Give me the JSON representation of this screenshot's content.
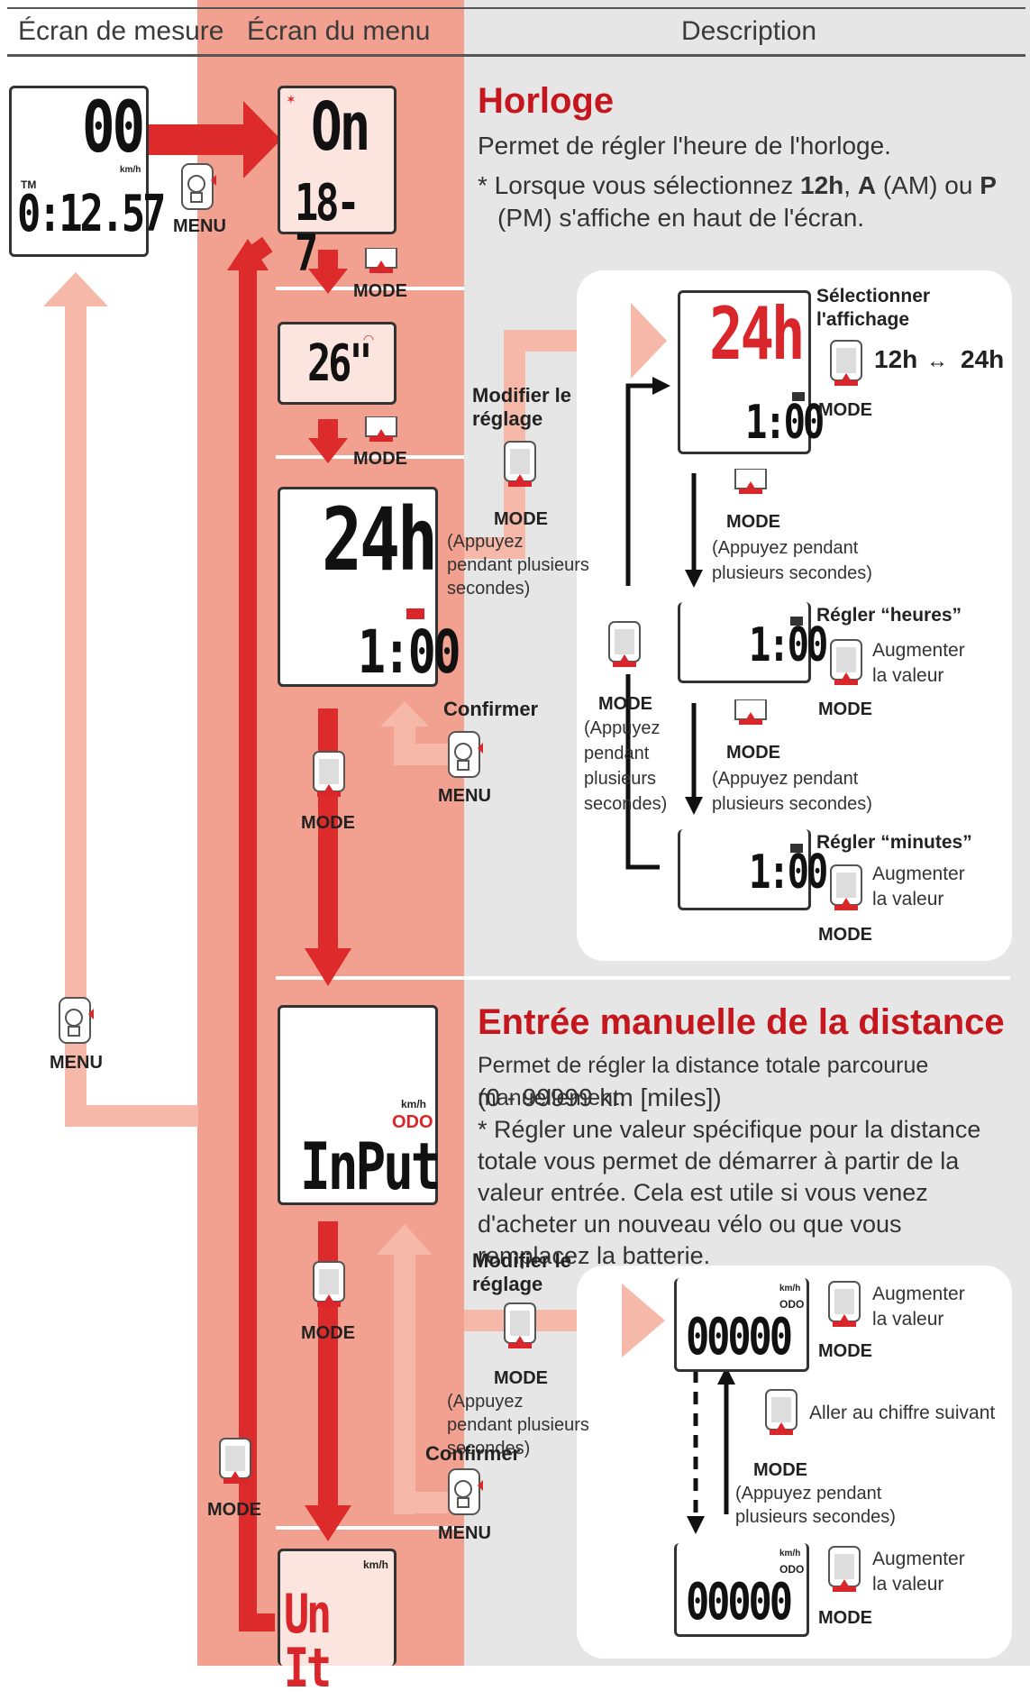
{
  "header": {
    "col1": "Écran de mesure",
    "col2": "Écran du menu",
    "col3": "Description"
  },
  "measure_screen": {
    "top": "00",
    "unit": "km/h",
    "tm": "TM",
    "bottom": "0:12.57"
  },
  "menu_labels": {
    "menu": "MENU",
    "mode": "MODE"
  },
  "menu_screens": {
    "clock": {
      "top": "On",
      "bottom": "18- 7"
    },
    "wheel": {
      "value": "26\""
    },
    "clockset": {
      "top": "24h",
      "bottom": "1:00"
    },
    "input": {
      "unit": "km/h",
      "odo": "ODO",
      "value": "InPut"
    },
    "unit": {
      "unit": "km/h",
      "value": "Un It"
    }
  },
  "horloge": {
    "title": "Horloge",
    "line1": "Permet de régler l'heure de l'horloge.",
    "note_prefix": "* Lorsque vous sélectionnez ",
    "note_12h": "12h",
    "note_mid1": ", ",
    "note_a": "A",
    "note_mid2": " (AM) ou ",
    "note_p": "P",
    "note_end": "(PM) s'affiche en haut de l'écran."
  },
  "horloge_flow": {
    "modify": "Modifier le réglage",
    "mode": "MODE",
    "hold": "(Appuyez pendant plusieurs secondes)",
    "confirm": "Confirmer",
    "menu": "MENU",
    "select_display": "Sélectionner l'affichage",
    "toggle_12": "12h",
    "toggle_arrow": "↔",
    "toggle_24": "24h",
    "screen_top": "24h",
    "screen_bottom": "1:00",
    "hold_a": "(Appuyez pendant",
    "hold_b": "plusieurs secondes)",
    "set_hours": "Régler “heures”",
    "set_minutes": "Régler “minutes”",
    "increase": "Augmenter la valeur",
    "loop_mode": "MODE",
    "loop_hold": "(Appuyez pendant plusieurs secondes)"
  },
  "distance": {
    "title": "Entrée manuelle de la distance",
    "line1": "Permet de régler la distance totale parcourue manuellement.",
    "line2": "(0 - 99999 km [miles])",
    "note": "* Régler une valeur spécifique pour la distance totale vous permet de démarrer à partir de la valeur entrée. Cela est utile si vous venez d'acheter un nouveau vélo ou que vous remplacez la batterie."
  },
  "distance_flow": {
    "modify": "Modifier le réglage",
    "mode": "MODE",
    "hold": "(Appuyez pendant plusieurs secondes)",
    "confirm": "Confirmer",
    "menu": "MENU",
    "increase": "Augmenter la valeur",
    "next_digit": "Aller au chiffre suivant",
    "unit": "km/h",
    "odo": "ODO",
    "value1": "00000",
    "value2": "00000"
  },
  "colors": {
    "accent_red": "#d9262b",
    "salmon": "#f3a290",
    "pale_salmon": "#f8c7b8",
    "grey_panel": "#e5e5e5"
  }
}
